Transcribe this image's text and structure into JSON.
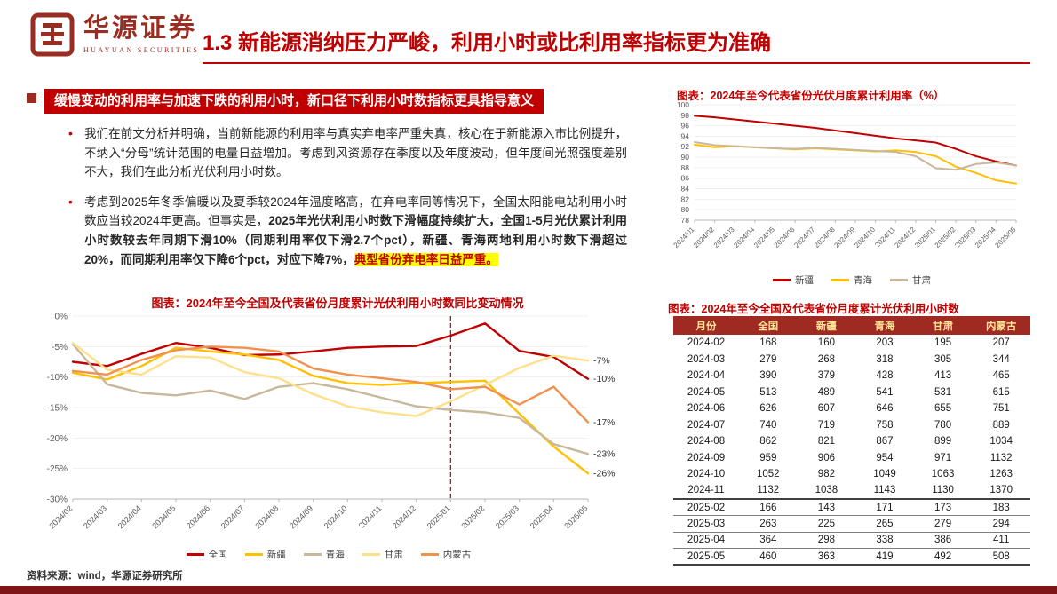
{
  "colors": {
    "accent": "#C00000",
    "brand": "#9A2D22",
    "bottom_bar": "#7E1517",
    "highlight_bg": "#FFFF00"
  },
  "header": {
    "brand_cn": "华源证券",
    "brand_en": "HUAYUAN SECURITIES",
    "title": "1.3 新能源消纳压力严峻，利用小时或比利用率指标更为准确"
  },
  "left": {
    "section_heading": "缓慢变动的利用率与加速下跌的利用小时，新口径下利用小时数指标更具指导意义",
    "bullet1": "我们在前文分析并明确，当前新能源的利用率与真实弃电率严重失真，核心在于新能源入市比例提升，不纳入“分母”统计范围的电量日益增加。考虑到风资源存在季度以及年度波动，但年度间光照强度差别不大，我们在此分析光伏利用小时数。",
    "bullet2_pre": "考虑到2025年冬季偏暖以及夏季较2024年温度略高，在弃电率同等情况下，全国太阳能电站利用小时数应当较2024年更高。但事实是，",
    "bullet2_bold": "2025年光伏利用小时数下滑幅度持续扩大，全国1-5月光伏累计利用小时数较去年同期下滑10%（同期利用率仅下滑2.7个pct），新疆、青海两地利用小时数下滑超过20%，而同期利用率仅下降6个pct，对应下降7%，",
    "bullet2_highlight": "典型省份弃电率日益严重。"
  },
  "chart_data": [
    {
      "name": "hours-yoy",
      "type": "line",
      "title": "图表：2024年至今全国及代表省份月度累计光伏利用小时数同比变动情况",
      "x": [
        "2024/02",
        "2024/03",
        "2024/04",
        "2024/05",
        "2024/06",
        "2024/07",
        "2024/08",
        "2024/09",
        "2024/10",
        "2024/11",
        "2024/12",
        "2025/01",
        "2025/02",
        "2025/03",
        "2025/04",
        "2025/05"
      ],
      "ylim": [
        -30,
        0
      ],
      "ytick_step": 5,
      "ytick_suffix": "%",
      "dashed_x": "2025/01",
      "legend_position": "bottom",
      "series": [
        {
          "key": "national",
          "name": "全国",
          "color": "#C00000",
          "end_label": "-10%",
          "values": [
            -7.5,
            -8.2,
            -6.2,
            -4.4,
            -5.2,
            -6.4,
            -6.3,
            -5.8,
            -5.2,
            -5.0,
            -4.9,
            -3.2,
            -1.2,
            -5.7,
            -6.7,
            -10.3
          ]
        },
        {
          "key": "xinjiang",
          "name": "新疆",
          "color": "#FFC000",
          "end_label": "-26%",
          "values": [
            -9.3,
            -10.4,
            -8.2,
            -5.2,
            -5.8,
            -6.3,
            -7.2,
            -9.8,
            -11.0,
            -11.3,
            -11.0,
            -10.8,
            -10.6,
            -16.0,
            -21.4,
            -25.8
          ]
        },
        {
          "key": "qinghai",
          "name": "青海",
          "color": "#C8B89B",
          "end_label": "-23%",
          "values": [
            -4.6,
            -11.2,
            -12.6,
            -13.0,
            -12.2,
            -13.6,
            -11.6,
            -11.0,
            -12.0,
            -13.4,
            -14.8,
            -15.4,
            -15.8,
            -16.7,
            -21.0,
            -22.6
          ]
        },
        {
          "key": "gansu",
          "name": "甘肃",
          "color": "#FFE08A",
          "end_label": "-7%",
          "values": [
            -4.4,
            -8.8,
            -9.6,
            -6.6,
            -6.8,
            -9.2,
            -10.2,
            -12.8,
            -14.8,
            -15.8,
            -16.4,
            -14.0,
            -11.3,
            -8.5,
            -6.5,
            -7.3
          ]
        },
        {
          "key": "inner-mongolia",
          "name": "内蒙古",
          "color": "#F0914E",
          "end_label": "-17%",
          "values": [
            -9.0,
            -9.6,
            -7.2,
            -5.6,
            -5.0,
            -5.2,
            -5.8,
            -8.6,
            -9.6,
            -10.2,
            -10.8,
            -12.0,
            -11.6,
            -14.5,
            -11.6,
            -17.4
          ]
        }
      ]
    },
    {
      "name": "utilization-rate",
      "type": "line",
      "title": "图表：2024年至今代表省份光伏月度累计利用率（%）",
      "x": [
        "2024/01",
        "2024/02",
        "2024/03",
        "2024/04",
        "2024/05",
        "2024/06",
        "2024/07",
        "2024/08",
        "2024/09",
        "2024/10",
        "2024/11",
        "2024/12",
        "2025/01",
        "2025/02",
        "2025/03",
        "2025/04",
        "2025/05"
      ],
      "ylim": [
        78,
        100
      ],
      "ytick_step": 2,
      "ytick_suffix": "",
      "legend_position": "bottom",
      "series": [
        {
          "key": "xinjiang",
          "name": "新疆",
          "color": "#C00000",
          "values": [
            97.9,
            97.6,
            97.2,
            96.8,
            96.4,
            96.0,
            95.6,
            95.1,
            94.6,
            94.1,
            93.6,
            93.2,
            92.8,
            91.6,
            90.2,
            89.2,
            88.4
          ]
        },
        {
          "key": "qinghai",
          "name": "青海",
          "color": "#FFC000",
          "values": [
            92.4,
            91.9,
            92.1,
            91.9,
            91.7,
            91.5,
            91.7,
            91.5,
            91.3,
            91.1,
            91.3,
            91.0,
            90.2,
            88.2,
            87.0,
            85.6,
            85.0
          ]
        },
        {
          "key": "gansu",
          "name": "甘肃",
          "color": "#C8B89B",
          "values": [
            92.9,
            92.3,
            92.1,
            91.9,
            91.7,
            91.6,
            91.8,
            91.6,
            91.4,
            91.2,
            91.0,
            90.2,
            87.9,
            87.6,
            88.7,
            89.0,
            88.4
          ]
        }
      ]
    }
  ],
  "table": {
    "title": "图表：2024年至今全国及代表省份月度累计光伏利用小时数",
    "headers": [
      "月份",
      "全国",
      "新疆",
      "青海",
      "甘肃",
      "内蒙古"
    ],
    "year_break_index": 10,
    "rows": [
      [
        "2024-02",
        168,
        160,
        203,
        195,
        207
      ],
      [
        "2024-03",
        279,
        268,
        318,
        305,
        344
      ],
      [
        "2024-04",
        390,
        379,
        428,
        413,
        465
      ],
      [
        "2024-05",
        513,
        489,
        541,
        531,
        615
      ],
      [
        "2024-06",
        626,
        607,
        646,
        655,
        751
      ],
      [
        "2024-07",
        740,
        719,
        758,
        780,
        889
      ],
      [
        "2024-08",
        862,
        821,
        867,
        899,
        1034
      ],
      [
        "2024-09",
        959,
        906,
        954,
        971,
        1132
      ],
      [
        "2024-10",
        1052,
        982,
        1049,
        1063,
        1263
      ],
      [
        "2024-11",
        1132,
        1038,
        1143,
        1130,
        1370
      ],
      [
        "2025-02",
        166,
        143,
        171,
        173,
        183
      ],
      [
        "2025-03",
        263,
        225,
        265,
        279,
        294
      ],
      [
        "2025-04",
        364,
        298,
        338,
        386,
        411
      ],
      [
        "2025-05",
        460,
        363,
        419,
        492,
        508
      ]
    ]
  },
  "footer": {
    "source": "资料来源：wind，华源证券研究所"
  }
}
